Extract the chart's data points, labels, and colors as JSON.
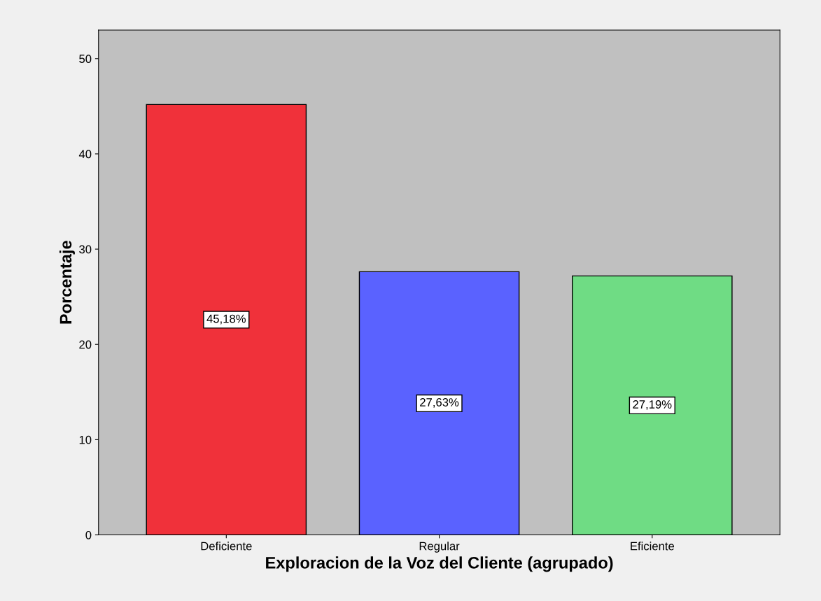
{
  "chart_data": {
    "type": "bar",
    "xlabel": "Exploracion de la Voz del Cliente (agrupado)",
    "ylabel": "Porcentaje",
    "categories": [
      "Deficiente",
      "Regular",
      "Eficiente"
    ],
    "values": [
      45.18,
      27.63,
      27.19
    ],
    "colors": [
      "#f0313a",
      "#5a62ff",
      "#6fdc84"
    ],
    "value_labels": [
      "45,18%",
      "27,63%",
      "27,19%"
    ],
    "ylim": [
      0,
      53
    ],
    "yticks": [
      0,
      10,
      20,
      30,
      40,
      50
    ],
    "grid": false,
    "legend": false
  }
}
